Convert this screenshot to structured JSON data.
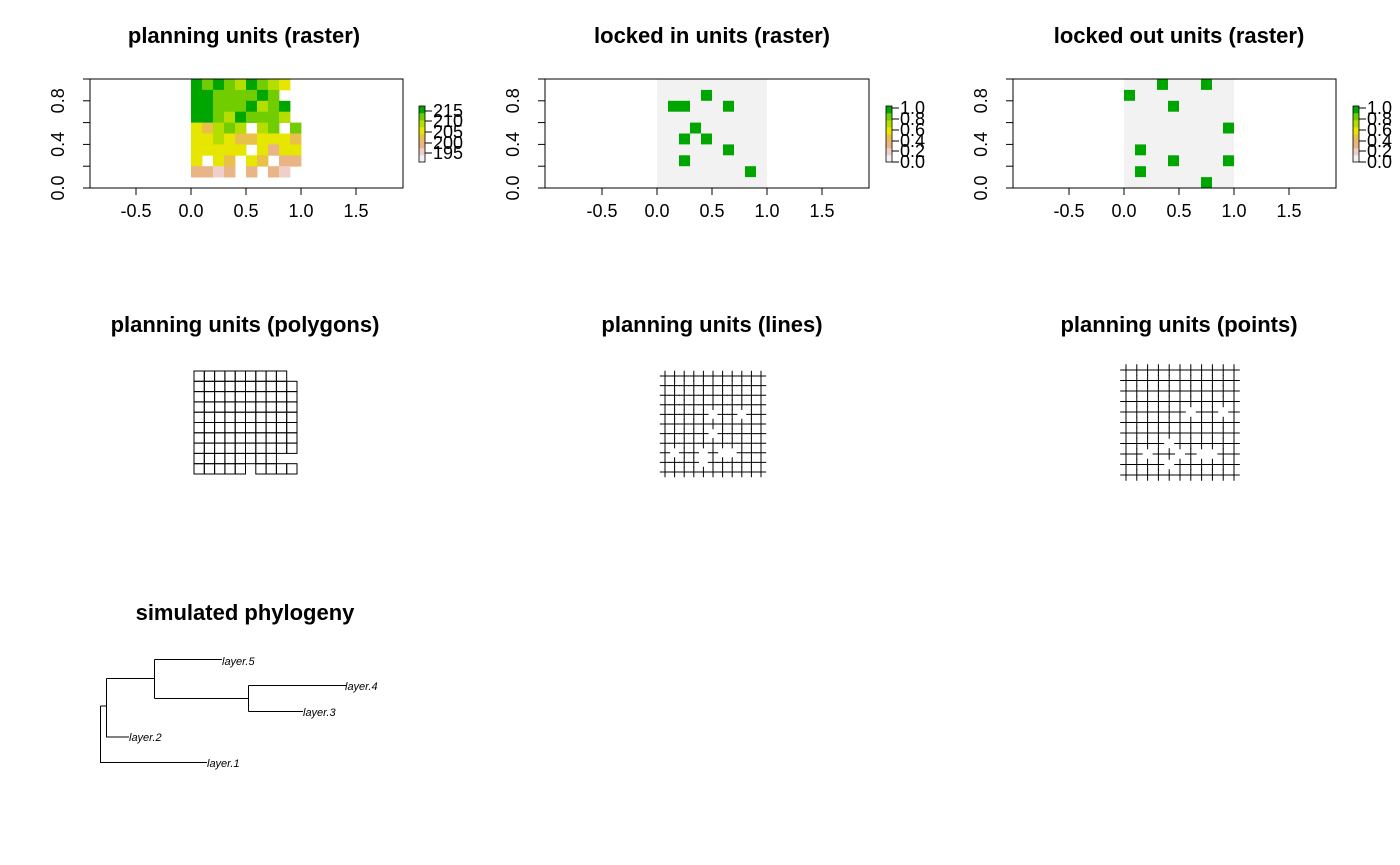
{
  "colors": {
    "terrain": [
      "#f2f2f2",
      "#efcfc7",
      "#eab586",
      "#e8c04a",
      "#e6e600",
      "#b3de00",
      "#71cc00",
      "#00a600"
    ],
    "neutral_raster": "#f2f2f2",
    "unit_on": "#00a600",
    "line": "#000000"
  },
  "chart_data": [
    {
      "id": "pu-raster",
      "type": "heatmap",
      "title": "planning units (raster)",
      "x_ticks": [
        "-0.5",
        "0.0",
        "0.5",
        "1.0",
        "1.5"
      ],
      "y_ticks": [
        "0.0",
        "0.4",
        "0.8"
      ],
      "legend_ticks": [
        "215",
        "210",
        "205",
        "200",
        "195"
      ],
      "value_range": [
        190,
        216
      ],
      "grid_rows_top_to_bottom": [
        [
          215,
          210,
          213,
          211,
          208,
          214,
          210,
          209,
          203
        ],
        [
          214,
          215,
          211,
          212,
          210,
          211,
          215,
          212,
          null
        ],
        [
          213,
          215,
          210,
          212,
          211,
          214,
          209,
          212,
          214
        ],
        [
          213,
          214,
          212,
          209,
          214,
          212,
          210,
          212,
          209
        ],
        [
          206,
          202,
          209,
          210,
          208,
          null,
          208,
          212,
          null,
          211
        ],
        [
          203,
          206,
          207,
          206,
          202,
          201,
          205,
          206,
          204,
          201
        ],
        [
          204,
          205,
          203,
          206,
          205,
          null,
          203,
          197,
          203,
          203
        ],
        [
          206,
          null,
          204,
          201,
          null,
          205,
          200,
          null,
          198,
          198
        ],
        [
          198,
          198,
          196,
          199,
          null,
          198,
          null,
          197,
          195,
          null
        ]
      ]
    },
    {
      "id": "locked-in",
      "type": "heatmap",
      "title": "locked in units (raster)",
      "x_ticks": [
        "-0.5",
        "0.0",
        "0.5",
        "1.0",
        "1.5"
      ],
      "y_ticks": [
        "0.0",
        "0.4",
        "0.8"
      ],
      "legend_ticks": [
        "1.0",
        "0.8",
        "0.6",
        "0.4",
        "0.2",
        "0.0"
      ],
      "locked_cells": [
        {
          "x": 0.45,
          "y": 0.85
        },
        {
          "x": 0.15,
          "y": 0.75
        },
        {
          "x": 0.25,
          "y": 0.75
        },
        {
          "x": 0.65,
          "y": 0.75
        },
        {
          "x": 0.35,
          "y": 0.55
        },
        {
          "x": 0.25,
          "y": 0.45
        },
        {
          "x": 0.45,
          "y": 0.45
        },
        {
          "x": 0.65,
          "y": 0.35
        },
        {
          "x": 0.25,
          "y": 0.25
        },
        {
          "x": 0.85,
          "y": 0.15
        }
      ]
    },
    {
      "id": "locked-out",
      "type": "heatmap",
      "title": "locked out units (raster)",
      "x_ticks": [
        "-0.5",
        "0.0",
        "0.5",
        "1.0",
        "1.5"
      ],
      "y_ticks": [
        "0.0",
        "0.4",
        "0.8"
      ],
      "legend_ticks": [
        "1.0",
        "0.8",
        "0.6",
        "0.4",
        "0.2",
        "0.0"
      ],
      "locked_cells": [
        {
          "x": 0.35,
          "y": 0.95
        },
        {
          "x": 0.75,
          "y": 0.95
        },
        {
          "x": 0.05,
          "y": 0.85
        },
        {
          "x": 0.45,
          "y": 0.75
        },
        {
          "x": 0.95,
          "y": 0.55
        },
        {
          "x": 0.15,
          "y": 0.35
        },
        {
          "x": 0.45,
          "y": 0.25
        },
        {
          "x": 0.95,
          "y": 0.25
        },
        {
          "x": 0.15,
          "y": 0.15
        },
        {
          "x": 0.75,
          "y": 0.05
        }
      ]
    },
    {
      "id": "pu-polygons",
      "type": "diagram",
      "title": "planning units (polygons)",
      "missing_cells": [
        {
          "col": 9,
          "row": 0
        },
        {
          "col": 8,
          "row": 8
        },
        {
          "col": 9,
          "row": 8
        },
        {
          "col": 5,
          "row": 9
        }
      ]
    },
    {
      "id": "pu-lines",
      "type": "diagram",
      "title": "planning units (lines)"
    },
    {
      "id": "pu-points",
      "type": "diagram",
      "title": "planning units (points)"
    },
    {
      "id": "phylogeny",
      "type": "diagram",
      "title": "simulated phylogeny",
      "tips": [
        "layer.5",
        "layer.4",
        "layer.3",
        "layer.2",
        "layer.1"
      ]
    }
  ]
}
